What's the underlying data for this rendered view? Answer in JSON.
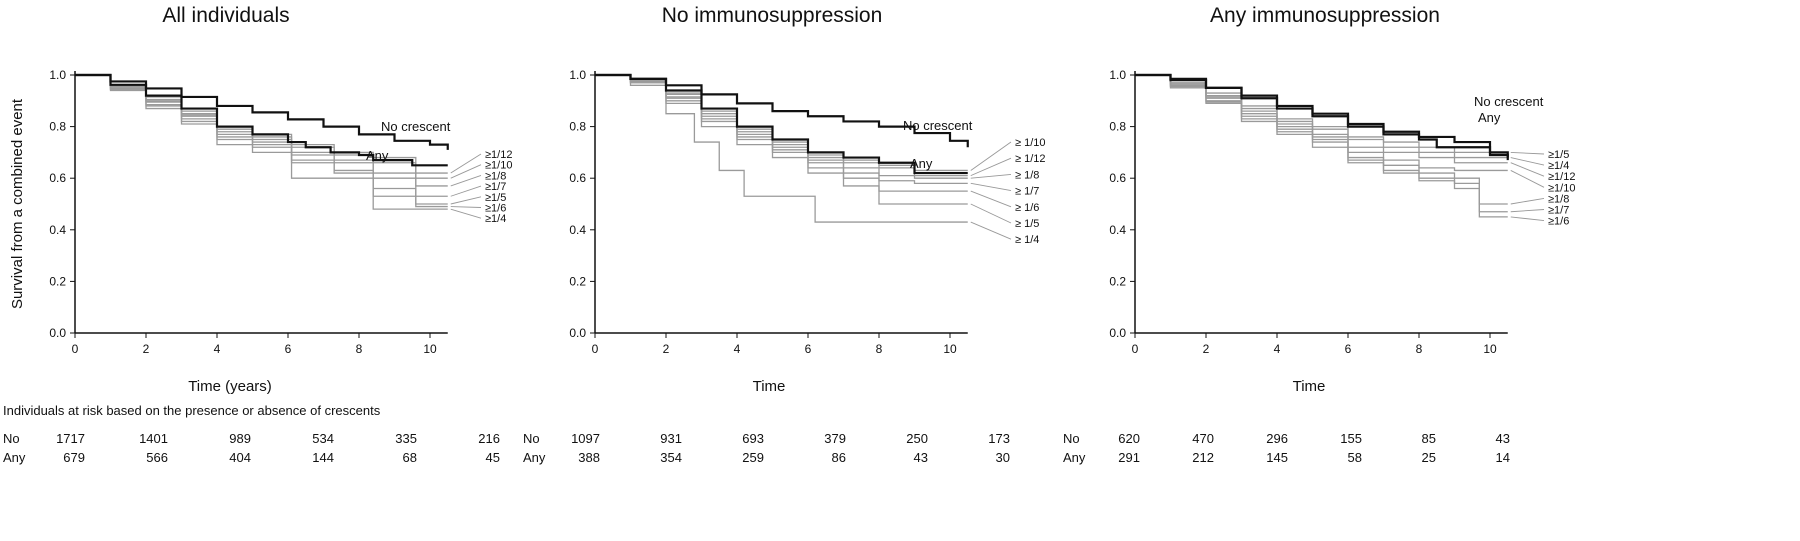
{
  "risk_caption": "Individuals at risk based on the presence or absence of crescents",
  "chart_data": [
    {
      "type": "line",
      "title": "All individuals",
      "xlabel": "Time (years)",
      "ylabel": "Survival from a combined event",
      "xlim": [
        0,
        10.5
      ],
      "ylim": [
        0,
        1.0
      ],
      "xticks": [
        "0",
        "2",
        "4",
        "6",
        "8",
        "10"
      ],
      "yticks": [
        "0.0",
        "0.2",
        "0.4",
        "0.6",
        "0.8",
        "1.0"
      ],
      "series": [
        {
          "name": "No crescent",
          "role": "main",
          "x": [
            0,
            1,
            2,
            3,
            4,
            5,
            6,
            7,
            8,
            9,
            10,
            10.5
          ],
          "y": [
            1.0,
            0.975,
            0.948,
            0.915,
            0.88,
            0.855,
            0.828,
            0.8,
            0.77,
            0.745,
            0.73,
            0.71
          ]
        },
        {
          "name": "Any",
          "role": "main",
          "x": [
            0,
            1,
            2,
            3,
            4,
            5,
            6,
            6.5,
            7.2,
            8,
            8.4,
            9.5,
            10.5
          ],
          "y": [
            1.0,
            0.962,
            0.92,
            0.87,
            0.8,
            0.77,
            0.74,
            0.72,
            0.7,
            0.69,
            0.67,
            0.65,
            0.65
          ]
        },
        {
          "name": "≥1/12",
          "role": "sub",
          "x": [
            0,
            1,
            2,
            3,
            4,
            5,
            6.1,
            7.3,
            8.4,
            9.6,
            10.5
          ],
          "y": [
            1.0,
            0.96,
            0.915,
            0.86,
            0.8,
            0.77,
            0.73,
            0.7,
            0.68,
            0.62,
            0.62
          ]
        },
        {
          "name": "≥1/10",
          "role": "sub",
          "x": [
            0,
            1,
            2,
            3,
            4,
            5,
            6.1,
            7.3,
            8.4,
            9.6,
            10.5
          ],
          "y": [
            1.0,
            0.955,
            0.905,
            0.85,
            0.79,
            0.76,
            0.72,
            0.69,
            0.66,
            0.6,
            0.6
          ]
        },
        {
          "name": "≥1/8",
          "role": "sub",
          "x": [
            0,
            1,
            2,
            3,
            4,
            5,
            6.1,
            7.3,
            8.4,
            9.6,
            10.5
          ],
          "y": [
            1.0,
            0.955,
            0.9,
            0.845,
            0.78,
            0.75,
            0.7,
            0.67,
            0.62,
            0.57,
            0.57
          ]
        },
        {
          "name": "≥1/7",
          "role": "sub",
          "x": [
            0,
            1,
            2,
            3,
            4,
            5,
            6.1,
            7.3,
            8.4,
            9.6,
            10.5
          ],
          "y": [
            1.0,
            0.95,
            0.895,
            0.84,
            0.77,
            0.74,
            0.69,
            0.66,
            0.6,
            0.53,
            0.53
          ]
        },
        {
          "name": "≥1/5",
          "role": "sub",
          "x": [
            0,
            1,
            2,
            3,
            4,
            5,
            6.1,
            7.3,
            8.4,
            9.6,
            10.5
          ],
          "y": [
            1.0,
            0.945,
            0.885,
            0.83,
            0.76,
            0.73,
            0.67,
            0.63,
            0.56,
            0.5,
            0.5
          ]
        },
        {
          "name": "≥1/6",
          "role": "sub",
          "x": [
            0,
            1,
            2,
            3,
            4,
            5,
            6.1,
            7.3,
            8.4,
            9.6,
            10.5
          ],
          "y": [
            1.0,
            0.945,
            0.88,
            0.82,
            0.75,
            0.72,
            0.66,
            0.62,
            0.53,
            0.49,
            0.49
          ]
        },
        {
          "name": "≥1/4",
          "role": "sub",
          "x": [
            0,
            1,
            2,
            3,
            4,
            5,
            6.1,
            7.3,
            8.4,
            9.6,
            10.5
          ],
          "y": [
            1.0,
            0.94,
            0.87,
            0.81,
            0.73,
            0.7,
            0.6,
            0.6,
            0.48,
            0.48,
            0.48
          ]
        }
      ],
      "risk_table": {
        "labels": [
          "No",
          "Any"
        ],
        "times": [
          0,
          2,
          4,
          6,
          8,
          10
        ],
        "rows": [
          [
            "1717",
            "1401",
            "989",
            "534",
            "335",
            "216"
          ],
          [
            "679",
            "566",
            "404",
            "144",
            "68",
            "45"
          ]
        ]
      }
    },
    {
      "type": "line",
      "title": "No immunosuppression",
      "xlabel": "Time",
      "ylabel": "",
      "xlim": [
        0,
        10.5
      ],
      "ylim": [
        0,
        1.0
      ],
      "xticks": [
        "0",
        "2",
        "4",
        "6",
        "8",
        "10"
      ],
      "yticks": [
        "0.0",
        "0.2",
        "0.4",
        "0.6",
        "0.8",
        "1.0"
      ],
      "series": [
        {
          "name": "No crescent",
          "role": "main",
          "x": [
            0,
            1,
            2,
            3,
            4,
            5,
            6,
            7,
            8,
            9,
            10,
            10.5
          ],
          "y": [
            1.0,
            0.985,
            0.96,
            0.925,
            0.89,
            0.86,
            0.84,
            0.82,
            0.8,
            0.775,
            0.745,
            0.72
          ]
        },
        {
          "name": "Any",
          "role": "main",
          "x": [
            0,
            1,
            2,
            3,
            4,
            5,
            6,
            7,
            8,
            9,
            10.5
          ],
          "y": [
            1.0,
            0.985,
            0.94,
            0.87,
            0.8,
            0.75,
            0.7,
            0.68,
            0.66,
            0.62,
            0.62
          ]
        },
        {
          "name": "≥ 1/10",
          "role": "sub",
          "x": [
            0,
            1,
            2,
            3,
            4,
            5,
            6,
            7,
            8,
            9,
            10.5
          ],
          "y": [
            1.0,
            0.98,
            0.93,
            0.86,
            0.79,
            0.74,
            0.69,
            0.67,
            0.65,
            0.63,
            0.63
          ]
        },
        {
          "name": "≥ 1/12",
          "role": "sub",
          "x": [
            0,
            1,
            2,
            3,
            4,
            5,
            6,
            7,
            8,
            9,
            10.5
          ],
          "y": [
            1.0,
            0.98,
            0.925,
            0.85,
            0.78,
            0.73,
            0.68,
            0.66,
            0.64,
            0.61,
            0.61
          ]
        },
        {
          "name": "≥ 1/8",
          "role": "sub",
          "x": [
            0,
            1,
            2,
            3,
            4,
            5,
            6,
            7,
            8,
            9,
            10.5
          ],
          "y": [
            1.0,
            0.975,
            0.915,
            0.84,
            0.77,
            0.72,
            0.67,
            0.64,
            0.61,
            0.6,
            0.6
          ]
        },
        {
          "name": "≥ 1/7",
          "role": "sub",
          "x": [
            0,
            1,
            2,
            3,
            4,
            5,
            6,
            7,
            8,
            9,
            10.5
          ],
          "y": [
            1.0,
            0.975,
            0.91,
            0.83,
            0.76,
            0.71,
            0.66,
            0.62,
            0.59,
            0.58,
            0.58
          ]
        },
        {
          "name": "≥ 1/6",
          "role": "sub",
          "x": [
            0,
            1,
            2,
            3,
            4,
            5,
            6,
            7,
            8,
            9,
            10.5
          ],
          "y": [
            1.0,
            0.97,
            0.9,
            0.82,
            0.75,
            0.7,
            0.64,
            0.6,
            0.55,
            0.55,
            0.55
          ]
        },
        {
          "name": "≥ 1/5",
          "role": "sub",
          "x": [
            0,
            1,
            2,
            3,
            4,
            5,
            6,
            7,
            8,
            9,
            10.5
          ],
          "y": [
            1.0,
            0.97,
            0.89,
            0.8,
            0.73,
            0.68,
            0.62,
            0.57,
            0.5,
            0.5,
            0.5
          ]
        },
        {
          "name": "≥ 1/4",
          "role": "sub",
          "x": [
            0,
            1,
            2,
            2.8,
            3.5,
            4.2,
            5,
            6.2,
            8,
            10.5
          ],
          "y": [
            1.0,
            0.96,
            0.85,
            0.74,
            0.63,
            0.53,
            0.53,
            0.43,
            0.43,
            0.43
          ]
        }
      ],
      "risk_table": {
        "labels": [
          "No",
          "Any"
        ],
        "times": [
          0,
          2,
          4,
          6,
          8,
          10
        ],
        "rows": [
          [
            "1097",
            "931",
            "693",
            "379",
            "250",
            "173"
          ],
          [
            "388",
            "354",
            "259",
            "86",
            "43",
            "30"
          ]
        ]
      }
    },
    {
      "type": "line",
      "title": "Any immunosuppression",
      "xlabel": "Time",
      "ylabel": "",
      "xlim": [
        0,
        10.5
      ],
      "ylim": [
        0,
        1.0
      ],
      "xticks": [
        "0",
        "2",
        "4",
        "6",
        "8",
        "10"
      ],
      "yticks": [
        "0.0",
        "0.2",
        "0.4",
        "0.6",
        "0.8",
        "1.0"
      ],
      "series": [
        {
          "name": "No crescent",
          "role": "main",
          "x": [
            0,
            1,
            2,
            3,
            4,
            5,
            6,
            7,
            8,
            9,
            10,
            10.5
          ],
          "y": [
            1.0,
            0.985,
            0.95,
            0.91,
            0.87,
            0.84,
            0.81,
            0.78,
            0.76,
            0.74,
            0.7,
            0.67
          ]
        },
        {
          "name": "Any",
          "role": "main",
          "x": [
            0,
            1,
            2,
            3,
            4,
            5,
            6,
            7,
            8,
            8.5,
            9,
            10,
            10.5
          ],
          "y": [
            1.0,
            0.98,
            0.95,
            0.92,
            0.88,
            0.85,
            0.8,
            0.77,
            0.75,
            0.72,
            0.72,
            0.69,
            0.68
          ]
        },
        {
          "name": "≥1/5",
          "role": "sub",
          "x": [
            0,
            1,
            2,
            3,
            4,
            5,
            6,
            7,
            8,
            9,
            10.5
          ],
          "y": [
            1.0,
            0.97,
            0.93,
            0.88,
            0.83,
            0.8,
            0.76,
            0.74,
            0.72,
            0.7,
            0.7
          ]
        },
        {
          "name": "≥1/4",
          "role": "sub",
          "x": [
            0,
            1,
            2,
            3,
            4,
            5,
            6,
            7,
            8,
            9,
            10.5
          ],
          "y": [
            1.0,
            0.965,
            0.92,
            0.87,
            0.82,
            0.79,
            0.75,
            0.72,
            0.7,
            0.68,
            0.68
          ]
        },
        {
          "name": "≥1/12",
          "role": "sub",
          "x": [
            0,
            1,
            2,
            3,
            4,
            5,
            6,
            7,
            8,
            9,
            10.5
          ],
          "y": [
            1.0,
            0.965,
            0.915,
            0.86,
            0.81,
            0.77,
            0.72,
            0.7,
            0.68,
            0.66,
            0.66
          ]
        },
        {
          "name": "≥1/10",
          "role": "sub",
          "x": [
            0,
            1,
            2,
            3,
            4,
            5,
            6,
            7,
            8,
            9,
            10.5
          ],
          "y": [
            1.0,
            0.96,
            0.91,
            0.85,
            0.8,
            0.76,
            0.7,
            0.67,
            0.64,
            0.63,
            0.63
          ]
        },
        {
          "name": "≥1/8",
          "role": "sub",
          "x": [
            0,
            1,
            2,
            3,
            4,
            5,
            6,
            7,
            8,
            9,
            9.7,
            10.5
          ],
          "y": [
            1.0,
            0.955,
            0.9,
            0.84,
            0.79,
            0.75,
            0.68,
            0.65,
            0.62,
            0.6,
            0.5,
            0.5
          ]
        },
        {
          "name": "≥1/7",
          "role": "sub",
          "x": [
            0,
            1,
            2,
            3,
            4,
            5,
            6,
            7,
            8,
            9,
            9.7,
            10.5
          ],
          "y": [
            1.0,
            0.955,
            0.895,
            0.83,
            0.78,
            0.74,
            0.67,
            0.63,
            0.6,
            0.58,
            0.47,
            0.47
          ]
        },
        {
          "name": "≥1/6",
          "role": "sub",
          "x": [
            0,
            1,
            2,
            3,
            4,
            5,
            6,
            7,
            8,
            9,
            9.7,
            10.5
          ],
          "y": [
            1.0,
            0.95,
            0.89,
            0.82,
            0.77,
            0.72,
            0.66,
            0.62,
            0.59,
            0.56,
            0.45,
            0.45
          ]
        }
      ],
      "risk_table": {
        "labels": [
          "No",
          "Any"
        ],
        "times": [
          0,
          2,
          4,
          6,
          8,
          10
        ],
        "rows": [
          [
            "620",
            "470",
            "296",
            "155",
            "85",
            "43"
          ],
          [
            "291",
            "212",
            "145",
            "58",
            "25",
            "14"
          ]
        ]
      }
    }
  ]
}
